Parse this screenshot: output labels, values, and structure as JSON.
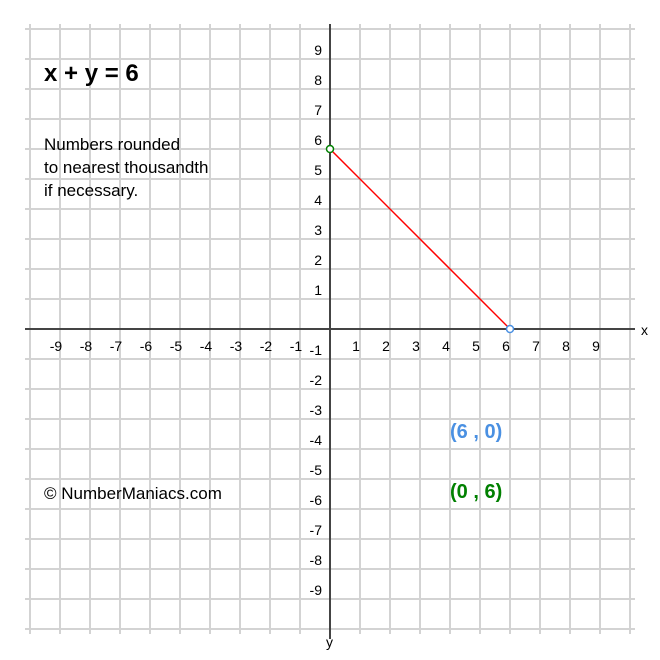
{
  "chart_data": {
    "type": "line",
    "title": "x + y = 6",
    "note_lines": [
      "Numbers rounded",
      "to nearest thousandth",
      "if necessary."
    ],
    "copyright": "© NumberManiacs.com",
    "xlabel": "x",
    "ylabel": "y",
    "xlim": [
      -10,
      10
    ],
    "ylim": [
      -10,
      10
    ],
    "grid": true,
    "xticks": [
      -9,
      -8,
      -7,
      -6,
      -5,
      -4,
      -3,
      -2,
      -1,
      1,
      2,
      3,
      4,
      5,
      6,
      7,
      8,
      9
    ],
    "yticks": [
      -9,
      -8,
      -7,
      -6,
      -5,
      -4,
      -3,
      -2,
      -1,
      1,
      2,
      3,
      4,
      5,
      6,
      7,
      8,
      9
    ],
    "series": [
      {
        "x": [
          0,
          6
        ],
        "y": [
          6,
          0
        ],
        "color": "#ff0000"
      }
    ],
    "points": [
      {
        "label": "(6 , 0)",
        "x": 6,
        "y": 0,
        "color": "#4a90e2"
      },
      {
        "label": "(0 , 6)",
        "x": 0,
        "y": 6,
        "color": "#008000"
      }
    ]
  }
}
